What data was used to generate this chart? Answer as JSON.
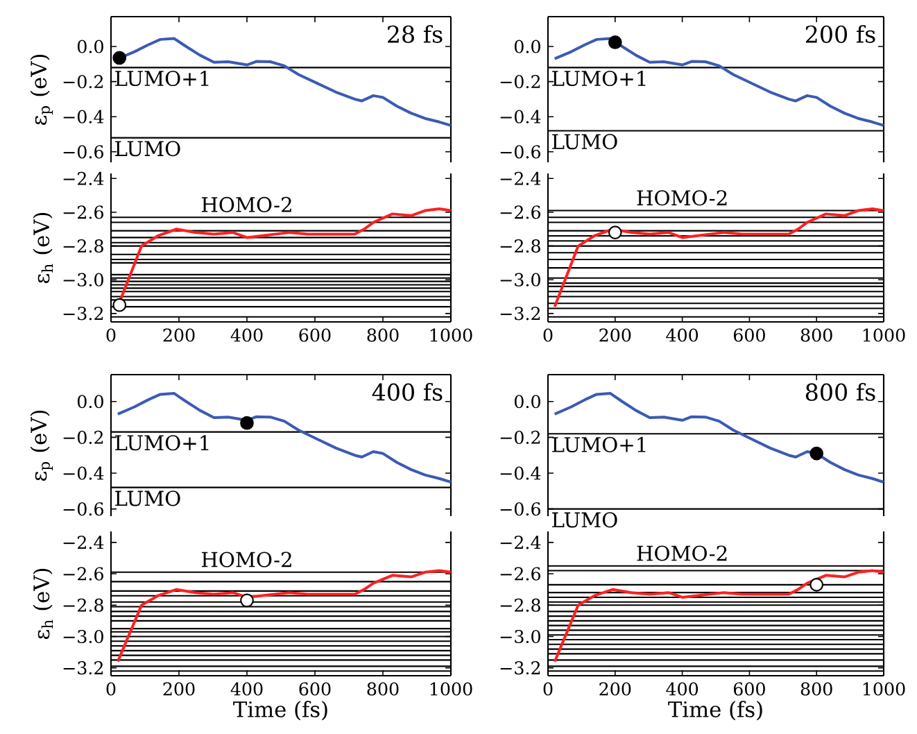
{
  "chart_data": [
    {
      "type": "line",
      "ylabel": "ε$_{p}$ (eV)",
      "annotations": [
        "28 fs"
      ],
      "xlim": [
        0,
        1000
      ],
      "ylim": [
        -0.66,
        0.17
      ],
      "xticks": [
        0,
        200,
        400,
        600,
        800,
        1000
      ],
      "yticks": [
        {
          "value": -0.6,
          "label": "−0.6"
        },
        {
          "value": -0.4,
          "label": "−0.4"
        },
        {
          "value": -0.2,
          "label": "−0.2"
        },
        {
          "value": 0,
          "label": "0.0"
        }
      ],
      "tick_labels": "y",
      "series": [
        {
          "color": "#3c5ab4",
          "x": [
            20,
            69,
            110,
            145,
            186,
            221,
            262,
            303,
            345,
            400,
            428,
            469,
            510,
            552,
            607,
            662,
            717,
            738,
            772,
            800,
            841,
            883,
            924,
            966,
            1000
          ],
          "values": [
            -0.07,
            -0.03,
            0.01,
            0.04,
            0.045,
            0.0,
            -0.05,
            -0.09,
            -0.087,
            -0.105,
            -0.085,
            -0.087,
            -0.11,
            -0.16,
            -0.21,
            -0.26,
            -0.3,
            -0.31,
            -0.28,
            -0.29,
            -0.34,
            -0.38,
            -0.41,
            -0.43,
            -0.45
          ]
        },
        {
          "type": "scatter",
          "marker": "circle",
          "color": "#000000",
          "x": [
            25
          ],
          "values": [
            -0.065
          ]
        }
      ],
      "ref_lines": [
        {
          "axis": "y",
          "value": -0.12,
          "label": "LUMO+1"
        },
        {
          "axis": "y",
          "value": -0.52,
          "label": "LUMO"
        }
      ]
    },
    {
      "type": "line",
      "ylabel": "ε$_{h}$ (eV)",
      "xlim": [
        0,
        1000
      ],
      "ylim": [
        -3.25,
        -2.37
      ],
      "xticks": [
        0,
        200,
        400,
        600,
        800,
        1000
      ],
      "yticks": [
        {
          "value": -3.2,
          "label": "−3.2"
        },
        {
          "value": -3.0,
          "label": "−3.0"
        },
        {
          "value": -2.8,
          "label": "−2.8"
        },
        {
          "value": -2.6,
          "label": "−2.6"
        },
        {
          "value": -2.4,
          "label": "−2.4"
        }
      ],
      "series": [
        {
          "color": "#ff2020",
          "x": [
            20,
            90,
            138,
            193,
            248,
            303,
            359,
            400,
            441,
            524,
            579,
            634,
            717,
            745,
            772,
            828,
            883,
            924,
            966,
            1000
          ],
          "values": [
            -3.16,
            -2.8,
            -2.74,
            -2.7,
            -2.72,
            -2.73,
            -2.72,
            -2.75,
            -2.74,
            -2.72,
            -2.73,
            -2.73,
            -2.73,
            -2.7,
            -2.66,
            -2.61,
            -2.62,
            -2.59,
            -2.58,
            -2.59
          ]
        },
        {
          "type": "scatter",
          "marker": "circle",
          "color": "#ffffff",
          "x": [
            25
          ],
          "values": [
            -3.15
          ]
        }
      ],
      "ref_lines": [
        {
          "axis": "y",
          "value": -2.63,
          "label": "HOMO-2"
        },
        {
          "axis": "y",
          "value": -2.66
        },
        {
          "axis": "y",
          "value": -2.71
        },
        {
          "axis": "y",
          "value": -2.75
        },
        {
          "axis": "y",
          "value": -2.78
        },
        {
          "axis": "y",
          "value": -2.8
        },
        {
          "axis": "y",
          "value": -2.85
        },
        {
          "axis": "y",
          "value": -2.88
        },
        {
          "axis": "y",
          "value": -2.9
        },
        {
          "axis": "y",
          "value": -2.97
        },
        {
          "axis": "y",
          "value": -2.99
        },
        {
          "axis": "y",
          "value": -3.01
        },
        {
          "axis": "y",
          "value": -3.03
        },
        {
          "axis": "y",
          "value": -3.05
        },
        {
          "axis": "y",
          "value": -3.07
        },
        {
          "axis": "y",
          "value": -3.1
        },
        {
          "axis": "y",
          "value": -3.12
        },
        {
          "axis": "y",
          "value": -3.16
        },
        {
          "axis": "y",
          "value": -3.22
        }
      ]
    },
    {
      "type": "line",
      "annotations": [
        "200 fs"
      ],
      "xlim": [
        0,
        1000
      ],
      "ylim": [
        -0.66,
        0.17
      ],
      "xticks": [
        0,
        200,
        400,
        600,
        800,
        1000
      ],
      "yticks": [
        {
          "value": -0.6,
          "label": "−0.6"
        },
        {
          "value": -0.4,
          "label": "−0.4"
        },
        {
          "value": -0.2,
          "label": "−0.2"
        },
        {
          "value": 0,
          "label": "0.0"
        }
      ],
      "tick_labels": "y",
      "series": [
        {
          "color": "#3c5ab4",
          "x": [
            20,
            69,
            110,
            145,
            186,
            221,
            262,
            303,
            345,
            400,
            428,
            469,
            510,
            552,
            607,
            662,
            717,
            738,
            772,
            800,
            841,
            883,
            924,
            966,
            1000
          ],
          "values": [
            -0.07,
            -0.03,
            0.01,
            0.04,
            0.045,
            0.0,
            -0.05,
            -0.09,
            -0.087,
            -0.105,
            -0.085,
            -0.087,
            -0.11,
            -0.16,
            -0.21,
            -0.26,
            -0.3,
            -0.31,
            -0.28,
            -0.29,
            -0.34,
            -0.38,
            -0.41,
            -0.43,
            -0.45
          ]
        },
        {
          "type": "scatter",
          "marker": "circle",
          "color": "#000000",
          "x": [
            200
          ],
          "values": [
            0.024
          ]
        }
      ],
      "ref_lines": [
        {
          "axis": "y",
          "value": -0.12,
          "label": "LUMO+1"
        },
        {
          "axis": "y",
          "value": -0.48,
          "label": "LUMO"
        }
      ]
    },
    {
      "type": "line",
      "xlim": [
        0,
        1000
      ],
      "ylim": [
        -3.25,
        -2.37
      ],
      "xticks": [
        0,
        200,
        400,
        600,
        800,
        1000
      ],
      "yticks": [
        {
          "value": -3.2,
          "label": "−3.2"
        },
        {
          "value": -3.0,
          "label": "−3.0"
        },
        {
          "value": -2.8,
          "label": "−2.8"
        },
        {
          "value": -2.6,
          "label": "−2.6"
        },
        {
          "value": -2.4,
          "label": "−2.4"
        }
      ],
      "series": [
        {
          "color": "#ff2020",
          "x": [
            20,
            90,
            138,
            193,
            248,
            303,
            359,
            400,
            441,
            524,
            579,
            634,
            717,
            745,
            772,
            828,
            883,
            924,
            966,
            1000
          ],
          "values": [
            -3.16,
            -2.8,
            -2.74,
            -2.7,
            -2.72,
            -2.73,
            -2.72,
            -2.75,
            -2.74,
            -2.72,
            -2.73,
            -2.73,
            -2.73,
            -2.7,
            -2.66,
            -2.61,
            -2.62,
            -2.59,
            -2.58,
            -2.59
          ]
        },
        {
          "type": "scatter",
          "marker": "circle",
          "color": "#ffffff",
          "x": [
            200
          ],
          "values": [
            -2.72
          ]
        }
      ],
      "ref_lines": [
        {
          "axis": "y",
          "value": -2.59,
          "label": "HOMO-2"
        },
        {
          "axis": "y",
          "value": -2.63
        },
        {
          "axis": "y",
          "value": -2.66
        },
        {
          "axis": "y",
          "value": -2.71
        },
        {
          "axis": "y",
          "value": -2.74
        },
        {
          "axis": "y",
          "value": -2.77
        },
        {
          "axis": "y",
          "value": -2.8
        },
        {
          "axis": "y",
          "value": -2.84
        },
        {
          "axis": "y",
          "value": -2.88
        },
        {
          "axis": "y",
          "value": -2.93
        },
        {
          "axis": "y",
          "value": -2.99
        },
        {
          "axis": "y",
          "value": -3.02
        },
        {
          "axis": "y",
          "value": -3.04
        },
        {
          "axis": "y",
          "value": -3.07
        },
        {
          "axis": "y",
          "value": -3.1
        },
        {
          "axis": "y",
          "value": -3.14
        },
        {
          "axis": "y",
          "value": -3.17
        },
        {
          "axis": "y",
          "value": -3.22
        }
      ]
    },
    {
      "type": "line",
      "ylabel": "ε$_{p}$ (eV)",
      "annotations": [
        "400 fs"
      ],
      "xlim": [
        0,
        1000
      ],
      "ylim": [
        -0.64,
        0.15
      ],
      "xticks": [
        0,
        200,
        400,
        600,
        800,
        1000
      ],
      "yticks": [
        {
          "value": -0.6,
          "label": "−0.6"
        },
        {
          "value": -0.4,
          "label": "−0.4"
        },
        {
          "value": -0.2,
          "label": "−0.2"
        },
        {
          "value": 0,
          "label": "0.0"
        }
      ],
      "tick_labels": "y",
      "series": [
        {
          "color": "#3c5ab4",
          "x": [
            20,
            69,
            110,
            145,
            186,
            221,
            262,
            303,
            345,
            400,
            428,
            469,
            510,
            552,
            607,
            662,
            717,
            738,
            772,
            800,
            841,
            883,
            924,
            966,
            1000
          ],
          "values": [
            -0.07,
            -0.03,
            0.01,
            0.04,
            0.045,
            0.0,
            -0.05,
            -0.09,
            -0.087,
            -0.105,
            -0.085,
            -0.087,
            -0.11,
            -0.16,
            -0.21,
            -0.26,
            -0.3,
            -0.31,
            -0.28,
            -0.29,
            -0.34,
            -0.38,
            -0.41,
            -0.43,
            -0.45
          ]
        },
        {
          "type": "scatter",
          "marker": "circle",
          "color": "#000000",
          "x": [
            400
          ],
          "values": [
            -0.12
          ]
        }
      ],
      "ref_lines": [
        {
          "axis": "y",
          "value": -0.17,
          "label": "LUMO+1"
        },
        {
          "axis": "y",
          "value": -0.48,
          "label": "LUMO"
        }
      ]
    },
    {
      "type": "line",
      "ylabel": "ε$_{h}$ (eV)",
      "xlabel": "Time (fs)",
      "xlim": [
        0,
        1000
      ],
      "ylim": [
        -3.25,
        -2.33
      ],
      "xticks": [
        0,
        200,
        400,
        600,
        800,
        1000
      ],
      "yticks": [
        {
          "value": -3.2,
          "label": "−3.2"
        },
        {
          "value": -3.0,
          "label": "−3.0"
        },
        {
          "value": -2.8,
          "label": "−2.8"
        },
        {
          "value": -2.6,
          "label": "−2.6"
        },
        {
          "value": -2.4,
          "label": "−2.4"
        }
      ],
      "series": [
        {
          "color": "#ff2020",
          "x": [
            20,
            90,
            138,
            193,
            248,
            303,
            359,
            400,
            441,
            524,
            579,
            634,
            717,
            745,
            772,
            828,
            883,
            924,
            966,
            1000
          ],
          "values": [
            -3.16,
            -2.8,
            -2.74,
            -2.7,
            -2.72,
            -2.73,
            -2.72,
            -2.75,
            -2.74,
            -2.72,
            -2.73,
            -2.73,
            -2.73,
            -2.7,
            -2.66,
            -2.61,
            -2.62,
            -2.59,
            -2.58,
            -2.59
          ]
        },
        {
          "type": "scatter",
          "marker": "circle",
          "color": "#ffffff",
          "x": [
            400
          ],
          "values": [
            -2.77
          ]
        }
      ],
      "ref_lines": [
        {
          "axis": "y",
          "value": -2.59,
          "label": "HOMO-2"
        },
        {
          "axis": "y",
          "value": -2.65
        },
        {
          "axis": "y",
          "value": -2.71
        },
        {
          "axis": "y",
          "value": -2.74
        },
        {
          "axis": "y",
          "value": -2.78
        },
        {
          "axis": "y",
          "value": -2.81
        },
        {
          "axis": "y",
          "value": -2.84
        },
        {
          "axis": "y",
          "value": -2.87
        },
        {
          "axis": "y",
          "value": -2.9
        },
        {
          "axis": "y",
          "value": -2.95
        },
        {
          "axis": "y",
          "value": -2.97
        },
        {
          "axis": "y",
          "value": -3.0
        },
        {
          "axis": "y",
          "value": -3.03
        },
        {
          "axis": "y",
          "value": -3.06
        },
        {
          "axis": "y",
          "value": -3.09
        },
        {
          "axis": "y",
          "value": -3.12
        },
        {
          "axis": "y",
          "value": -3.15
        },
        {
          "axis": "y",
          "value": -3.19
        },
        {
          "axis": "y",
          "value": -3.22
        }
      ]
    },
    {
      "type": "line",
      "annotations": [
        "800 fs"
      ],
      "xlim": [
        0,
        1000
      ],
      "ylim": [
        -0.64,
        0.15
      ],
      "xticks": [
        0,
        200,
        400,
        600,
        800,
        1000
      ],
      "yticks": [
        {
          "value": -0.6,
          "label": "−0.6"
        },
        {
          "value": -0.4,
          "label": "−0.4"
        },
        {
          "value": -0.2,
          "label": "−0.2"
        },
        {
          "value": 0,
          "label": "0.0"
        }
      ],
      "tick_labels": "y",
      "series": [
        {
          "color": "#3c5ab4",
          "x": [
            20,
            69,
            110,
            145,
            186,
            221,
            262,
            303,
            345,
            400,
            428,
            469,
            510,
            552,
            607,
            662,
            717,
            738,
            772,
            800,
            841,
            883,
            924,
            966,
            1000
          ],
          "values": [
            -0.07,
            -0.03,
            0.01,
            0.04,
            0.045,
            0.0,
            -0.05,
            -0.09,
            -0.087,
            -0.105,
            -0.085,
            -0.087,
            -0.11,
            -0.16,
            -0.21,
            -0.26,
            -0.3,
            -0.31,
            -0.28,
            -0.29,
            -0.34,
            -0.38,
            -0.41,
            -0.43,
            -0.45
          ]
        },
        {
          "type": "scatter",
          "marker": "circle",
          "color": "#000000",
          "x": [
            800
          ],
          "values": [
            -0.29
          ]
        }
      ],
      "ref_lines": [
        {
          "axis": "y",
          "value": -0.18,
          "label": "LUMO+1"
        },
        {
          "axis": "y",
          "value": -0.6,
          "label": "LUMO"
        }
      ]
    },
    {
      "type": "line",
      "xlabel": "Time (fs)",
      "xlim": [
        0,
        1000
      ],
      "ylim": [
        -3.25,
        -2.33
      ],
      "xticks": [
        0,
        200,
        400,
        600,
        800,
        1000
      ],
      "yticks": [
        {
          "value": -3.2,
          "label": "−3.2"
        },
        {
          "value": -3.0,
          "label": "−3.0"
        },
        {
          "value": -2.8,
          "label": "−2.8"
        },
        {
          "value": -2.6,
          "label": "−2.6"
        },
        {
          "value": -2.4,
          "label": "−2.4"
        }
      ],
      "series": [
        {
          "color": "#ff2020",
          "x": [
            20,
            90,
            138,
            193,
            248,
            303,
            359,
            400,
            441,
            524,
            579,
            634,
            717,
            745,
            772,
            828,
            883,
            924,
            966,
            1000
          ],
          "values": [
            -3.16,
            -2.8,
            -2.74,
            -2.7,
            -2.72,
            -2.73,
            -2.72,
            -2.75,
            -2.74,
            -2.72,
            -2.73,
            -2.73,
            -2.73,
            -2.7,
            -2.66,
            -2.61,
            -2.62,
            -2.59,
            -2.58,
            -2.59
          ]
        },
        {
          "type": "scatter",
          "marker": "circle",
          "color": "#ffffff",
          "x": [
            800
          ],
          "values": [
            -2.67
          ]
        }
      ],
      "ref_lines": [
        {
          "axis": "y",
          "value": -2.55,
          "label": "HOMO-2"
        },
        {
          "axis": "y",
          "value": -2.58
        },
        {
          "axis": "y",
          "value": -2.67
        },
        {
          "axis": "y",
          "value": -2.72
        },
        {
          "axis": "y",
          "value": -2.75
        },
        {
          "axis": "y",
          "value": -2.78
        },
        {
          "axis": "y",
          "value": -2.8
        },
        {
          "axis": "y",
          "value": -2.84
        },
        {
          "axis": "y",
          "value": -2.87
        },
        {
          "axis": "y",
          "value": -2.9
        },
        {
          "axis": "y",
          "value": -2.93
        },
        {
          "axis": "y",
          "value": -2.96
        },
        {
          "axis": "y",
          "value": -2.99
        },
        {
          "axis": "y",
          "value": -3.02
        },
        {
          "axis": "y",
          "value": -3.05
        },
        {
          "axis": "y",
          "value": -3.08
        },
        {
          "axis": "y",
          "value": -3.11
        },
        {
          "axis": "y",
          "value": -3.15
        },
        {
          "axis": "y",
          "value": -3.19
        },
        {
          "axis": "y",
          "value": -3.22
        }
      ]
    }
  ]
}
